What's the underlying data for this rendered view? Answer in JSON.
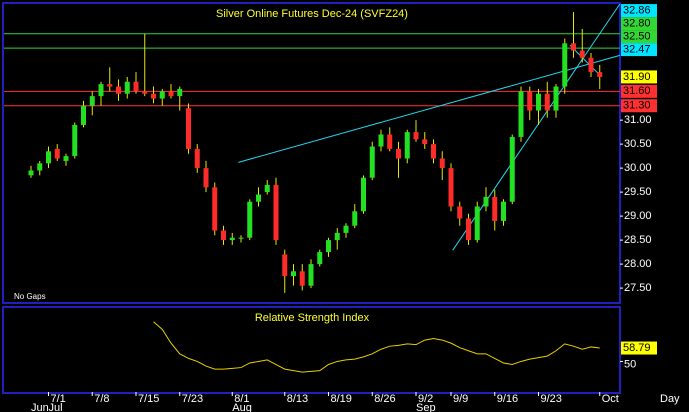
{
  "chart_data": [
    {
      "type": "candlestick",
      "title": "Silver Online Futures Dec-24 (SVFZ24)",
      "note": "No Gaps",
      "ylim": [
        27.21,
        33.42
      ],
      "yticks": [
        {
          "value": 27.5,
          "label": "27.50"
        },
        {
          "value": 28,
          "label": "28.00"
        },
        {
          "value": 28.5,
          "label": "28.50"
        },
        {
          "value": 29,
          "label": "29.00"
        },
        {
          "value": 29.5,
          "label": "29.50"
        },
        {
          "value": 30,
          "label": "30.00"
        },
        {
          "value": 30.5,
          "label": "30.50"
        },
        {
          "value": 31,
          "label": "31.00"
        }
      ],
      "up_color": "#22e022",
      "down_color": "#ff2a2a",
      "wick_color": "#e8e800",
      "open": [
        29.85,
        29.95,
        30.1,
        30.4,
        30.15,
        30.25,
        30.9,
        31.3,
        31.5,
        31.75,
        31.7,
        31.55,
        31.8,
        31.6,
        31.55,
        31.45,
        31.6,
        31.5,
        31.25,
        30.4,
        30.0,
        29.6,
        28.7,
        28.5,
        28.55,
        28.55,
        29.3,
        29.5,
        29.65,
        28.2,
        27.75,
        27.85,
        27.55,
        28.0,
        28.25,
        28.5,
        28.65,
        28.8,
        29.1,
        29.8,
        30.45,
        30.7,
        30.4,
        30.2,
        30.75,
        30.6,
        30.5,
        30.2,
        30.0,
        29.2,
        28.95,
        28.5,
        29.2,
        29.4,
        28.9,
        29.3,
        30.65,
        31.6,
        31.2,
        31.55,
        31.2,
        31.7,
        32.6,
        32.45,
        32.3,
        32.0
      ],
      "high": [
        30.05,
        30.15,
        30.45,
        30.5,
        30.3,
        30.95,
        31.4,
        31.6,
        31.8,
        32.1,
        31.85,
        31.9,
        32.0,
        32.8,
        31.7,
        31.65,
        31.75,
        31.7,
        31.35,
        30.5,
        30.15,
        29.7,
        28.8,
        28.65,
        28.6,
        29.35,
        29.6,
        29.75,
        29.8,
        28.3,
        28.0,
        28.0,
        28.1,
        28.3,
        28.55,
        28.75,
        28.85,
        29.25,
        29.85,
        30.55,
        30.8,
        30.85,
        30.55,
        30.8,
        31.0,
        30.75,
        30.6,
        30.35,
        30.1,
        29.3,
        29.05,
        29.3,
        29.6,
        29.55,
        29.35,
        30.7,
        31.7,
        31.7,
        31.65,
        31.8,
        31.75,
        32.7,
        33.25,
        32.9,
        32.4,
        32.15
      ],
      "low": [
        29.8,
        29.85,
        30.0,
        30.15,
        30.05,
        30.2,
        30.85,
        31.1,
        31.3,
        31.6,
        31.4,
        31.45,
        31.55,
        31.5,
        31.35,
        31.3,
        31.45,
        31.2,
        30.3,
        29.9,
        29.5,
        28.6,
        28.4,
        28.4,
        28.45,
        28.5,
        29.2,
        29.45,
        28.4,
        27.4,
        27.55,
        27.45,
        27.5,
        27.95,
        28.15,
        28.3,
        28.55,
        28.75,
        29.05,
        29.75,
        30.35,
        30.35,
        29.8,
        30.1,
        30.55,
        30.4,
        30.1,
        29.75,
        29.1,
        28.8,
        28.4,
        28.45,
        29.1,
        28.7,
        28.8,
        29.25,
        30.55,
        31.0,
        30.9,
        31.05,
        31.05,
        31.55,
        32.3,
        32.2,
        31.9,
        31.65
      ],
      "close": [
        29.95,
        30.1,
        30.35,
        30.2,
        30.25,
        30.9,
        31.3,
        31.5,
        31.75,
        31.7,
        31.55,
        31.8,
        31.6,
        31.55,
        31.45,
        31.6,
        31.5,
        31.65,
        30.4,
        30.0,
        29.6,
        28.7,
        28.5,
        28.55,
        28.55,
        29.3,
        29.45,
        29.65,
        28.5,
        27.75,
        27.85,
        27.55,
        28.0,
        28.25,
        28.5,
        28.65,
        28.8,
        29.1,
        29.8,
        30.45,
        30.7,
        30.4,
        30.2,
        30.75,
        30.6,
        30.5,
        30.2,
        30.0,
        29.2,
        28.95,
        28.5,
        29.2,
        29.4,
        28.9,
        29.3,
        30.65,
        31.6,
        31.2,
        31.55,
        31.2,
        31.7,
        32.6,
        32.45,
        32.3,
        32.0,
        31.9
      ],
      "levels": [
        {
          "value": 32.8,
          "color": "#3ad03a"
        },
        {
          "value": 32.5,
          "color": "#3ad03a"
        },
        {
          "value": 31.6,
          "color": "#ff3030"
        },
        {
          "value": 31.3,
          "color": "#ff3030"
        }
      ],
      "trendlines": [
        {
          "x": [
            23.7,
            67.3
          ],
          "y": [
            30.12,
            32.35
          ],
          "color": "#20d8f0"
        },
        {
          "x": [
            48.2,
            67.3
          ],
          "y": [
            28.29,
            33.42
          ],
          "color": "#20d8f0"
        },
        {
          "x": [
            61.6,
            65
          ],
          "y": [
            32.56,
            31.94
          ],
          "color": "#20d8f0"
        }
      ],
      "price_tags": [
        {
          "value": 32.86,
          "label": "32.86",
          "color": "#00e5ff"
        },
        {
          "value": 32.8,
          "label": "32.80",
          "color": "#33d633"
        },
        {
          "value": 32.5,
          "label": "32.50",
          "color": "#33d633"
        },
        {
          "value": 32.47,
          "label": "32.47",
          "color": "#00e5ff"
        },
        {
          "value": 31.9,
          "label": "31.90",
          "color": "#ffff00"
        },
        {
          "value": 31.6,
          "label": "31.60",
          "color": "#ff3030"
        },
        {
          "value": 31.3,
          "label": "31.30",
          "color": "#ff3030"
        }
      ]
    },
    {
      "type": "line",
      "title": "Relative Strength Index",
      "ylim": [
        30,
        85
      ],
      "yticks": [
        50
      ],
      "color": "#e8d000",
      "values": [
        null,
        null,
        null,
        null,
        null,
        null,
        null,
        null,
        null,
        null,
        null,
        null,
        null,
        null,
        76,
        71,
        62,
        55,
        52,
        50,
        47,
        45,
        45,
        45.5,
        46,
        49,
        50,
        51,
        48,
        45,
        44,
        43,
        43.5,
        44,
        48,
        50,
        51,
        51.5,
        53,
        55,
        58,
        60,
        60.5,
        61.5,
        61,
        64,
        65,
        64,
        62,
        59,
        57,
        55,
        55,
        52,
        49,
        48,
        50,
        51.5,
        52.5,
        53.5,
        57,
        61.5,
        60,
        58,
        59.5,
        58.79
      ],
      "last_tag": {
        "value": 58.79,
        "color": "#ffff00"
      },
      "categories": [
        null,
        null,
        "7/1",
        null,
        null,
        null,
        null,
        "7/8",
        null,
        null,
        null,
        null,
        "7/15",
        null,
        null,
        null,
        null,
        "7/23",
        null,
        null,
        null,
        null,
        null,
        "8/1",
        null,
        null,
        null,
        null,
        null,
        "8/13",
        null,
        null,
        null,
        null,
        "8/19",
        null,
        null,
        null,
        null,
        "8/26",
        null,
        null,
        null,
        null,
        "9/2",
        null,
        null,
        null,
        "9/9",
        null,
        null,
        null,
        null,
        "9/16",
        null,
        null,
        null,
        null,
        "9/23",
        null,
        null,
        null,
        null,
        null,
        null,
        "Oct"
      ],
      "months": [
        "Jun",
        null,
        "Jul",
        null,
        null,
        null,
        null,
        null,
        null,
        null,
        null,
        null,
        null,
        null,
        null,
        null,
        null,
        null,
        null,
        null,
        null,
        null,
        null,
        "Aug",
        null,
        null,
        null,
        null,
        null,
        null,
        null,
        null,
        null,
        null,
        null,
        null,
        null,
        null,
        null,
        null,
        null,
        null,
        null,
        null,
        "Sep",
        null,
        null,
        null,
        null,
        null,
        null,
        null,
        null,
        null,
        null,
        null,
        null,
        null,
        null,
        null,
        null,
        null,
        null,
        null,
        null,
        null
      ],
      "xlabel": "Day"
    }
  ]
}
